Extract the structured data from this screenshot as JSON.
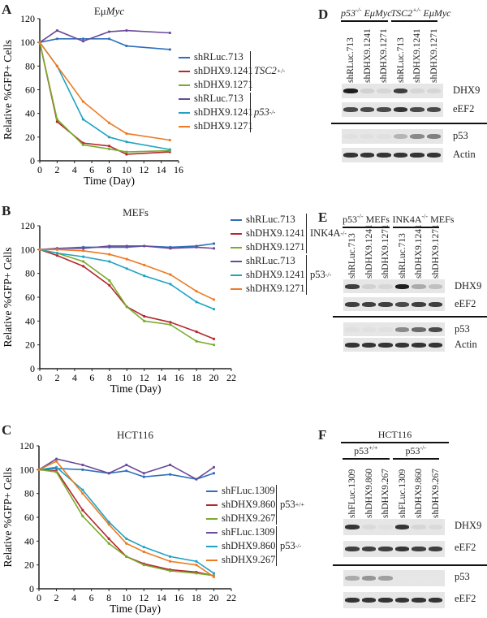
{
  "chart_data": [
    {
      "panel": "A",
      "type": "line",
      "title_parts": [
        "Eμ",
        "Myc"
      ],
      "xlabel": "Time (Day)",
      "ylabel": "Relative %GFP+ Cells",
      "xlim": [
        0,
        16
      ],
      "ylim": [
        0,
        120
      ],
      "xticks": [
        0,
        2,
        4,
        6,
        8,
        10,
        12,
        14,
        16
      ],
      "yticks": [
        0,
        20,
        40,
        60,
        80,
        100,
        120
      ],
      "grid": false,
      "legend": "right",
      "x": [
        0,
        2,
        5,
        8,
        10,
        15
      ],
      "groups": [
        {
          "name": "TSC2",
          "sup": "+/-",
          "italic": true
        },
        {
          "name": "p53",
          "sup": "-/-",
          "italic": true
        }
      ],
      "series": [
        {
          "name": "shRLuc.713",
          "group": 0,
          "color": "#2e6fba",
          "values": [
            100,
            103,
            103,
            103,
            97,
            94
          ]
        },
        {
          "name": "shDHX9.1241",
          "group": 0,
          "color": "#b5282e",
          "values": [
            100,
            33,
            15,
            12.5,
            5.5,
            7.5
          ]
        },
        {
          "name": "shDHX9.1271",
          "group": 0,
          "color": "#7aab2e",
          "values": [
            100,
            35,
            13.5,
            10,
            7.5,
            8.5
          ]
        },
        {
          "name": "shRLuc.713",
          "group": 1,
          "color": "#6b4a9a",
          "values": [
            100,
            110,
            101,
            109,
            110,
            108
          ]
        },
        {
          "name": "shDHX9.1241",
          "group": 1,
          "color": "#20a3c2",
          "values": [
            100,
            80,
            35,
            20,
            16,
            9.5
          ]
        },
        {
          "name": "shDHX9.1271",
          "group": 1,
          "color": "#ee7a22",
          "values": [
            100,
            80,
            50,
            32,
            23,
            17.5
          ]
        }
      ]
    },
    {
      "panel": "B",
      "type": "line",
      "title_parts": [
        "MEFs",
        ""
      ],
      "xlabel": "Time (Day)",
      "ylabel": "Relative %GFP+ Cells",
      "xlim": [
        0,
        22
      ],
      "ylim": [
        0,
        120
      ],
      "xticks": [
        0,
        2,
        4,
        6,
        8,
        10,
        12,
        14,
        16,
        18,
        20,
        22
      ],
      "yticks": [
        0,
        20,
        40,
        60,
        80,
        100,
        120
      ],
      "grid": false,
      "legend": "right",
      "x": [
        0,
        2,
        5,
        8,
        10,
        12,
        15,
        18,
        20
      ],
      "groups": [
        {
          "name": "INK4A",
          "sup": "-/-",
          "italic": false
        },
        {
          "name": "p53",
          "sup": "-/-",
          "italic": false
        }
      ],
      "series": [
        {
          "name": "shRLuc.713",
          "group": 0,
          "color": "#2e6fba",
          "values": [
            100,
            101,
            102,
            102,
            102,
            103,
            102,
            103,
            105
          ]
        },
        {
          "name": "shDHX9.1241",
          "group": 0,
          "color": "#b5282e",
          "values": [
            100,
            95,
            86,
            70,
            52,
            44,
            39,
            31,
            25
          ]
        },
        {
          "name": "shDHX9.1271",
          "group": 0,
          "color": "#7aab2e",
          "values": [
            100,
            97,
            90,
            74,
            52,
            40,
            37,
            23,
            20
          ]
        },
        {
          "name": "shRLuc.713",
          "group": 1,
          "color": "#6b4a9a",
          "values": [
            100,
            101,
            101,
            103,
            103,
            103,
            101,
            102,
            101
          ]
        },
        {
          "name": "shDHX9.1241",
          "group": 1,
          "color": "#20a3c2",
          "values": [
            100,
            97,
            94,
            90,
            84,
            78,
            71,
            56,
            50
          ]
        },
        {
          "name": "shDHX9.1271",
          "group": 1,
          "color": "#ee7a22",
          "values": [
            100,
            100,
            99,
            96,
            92,
            87,
            79,
            65,
            58
          ]
        }
      ]
    },
    {
      "panel": "C",
      "type": "line",
      "title_parts": [
        "HCT116",
        ""
      ],
      "xlabel": "Time (Day)",
      "ylabel": "Relative %GFP+ Cells",
      "xlim": [
        0,
        22
      ],
      "ylim": [
        0,
        120
      ],
      "xticks": [
        0,
        2,
        4,
        6,
        8,
        10,
        12,
        14,
        16,
        18,
        20,
        22
      ],
      "yticks": [
        0,
        20,
        40,
        60,
        80,
        100,
        120
      ],
      "grid": false,
      "legend": "right",
      "x": [
        0,
        2,
        5,
        8,
        10,
        12,
        15,
        18,
        20
      ],
      "groups": [
        {
          "name": "p53",
          "sup": "+/+",
          "italic": false
        },
        {
          "name": "p53",
          "sup": "-/-",
          "italic": false
        }
      ],
      "series": [
        {
          "name": "shFLuc.1309",
          "group": 0,
          "color": "#2e6fba",
          "values": [
            100,
            101,
            100,
            97,
            99,
            94,
            96,
            92,
            97
          ]
        },
        {
          "name": "shDHX9.860",
          "group": 0,
          "color": "#b5282e",
          "values": [
            100,
            99,
            66,
            42,
            27,
            21,
            16,
            14,
            11
          ]
        },
        {
          "name": "shDHX9.267",
          "group": 0,
          "color": "#7aab2e",
          "values": [
            100,
            98,
            61,
            38,
            27,
            20,
            15,
            13,
            11
          ]
        },
        {
          "name": "shFLuc.1309",
          "group": 1,
          "color": "#6b4a9a",
          "values": [
            100,
            109,
            104,
            97,
            104,
            97,
            104,
            92,
            102
          ]
        },
        {
          "name": "shDHX9.860",
          "group": 1,
          "color": "#20a3c2",
          "values": [
            100,
            102,
            83,
            56,
            42,
            35,
            27,
            23,
            13
          ]
        },
        {
          "name": "shDHX9.267",
          "group": 1,
          "color": "#ee7a22",
          "values": [
            100,
            107,
            80,
            54,
            38,
            31,
            23,
            20,
            10
          ]
        }
      ]
    }
  ],
  "blots": [
    {
      "panel": "D",
      "super_header": "",
      "headers": [
        {
          "name": "p53",
          "sup": "-/-",
          "rest": " EμMyc"
        },
        {
          "name": "TSC2",
          "sup": "+/-",
          "rest": " EμMyc"
        }
      ],
      "lanes": [
        "shRLuc.713",
        "shDHX9.1241",
        "shDHX9.1271",
        "shRLuc.713",
        "shDHX9.1241",
        "shDHX9.1271"
      ],
      "rows": [
        {
          "label": "DHX9",
          "intensity": [
            0.95,
            0.12,
            0.1,
            0.8,
            0.1,
            0.1
          ]
        },
        {
          "label": "eEF2",
          "intensity": [
            0.75,
            0.75,
            0.75,
            0.85,
            0.75,
            0.75
          ]
        },
        {
          "label": "p53",
          "intensity": [
            0.05,
            0.05,
            0.05,
            0.25,
            0.45,
            0.5
          ]
        },
        {
          "label": "Actin",
          "intensity": [
            0.85,
            0.85,
            0.85,
            0.85,
            0.85,
            0.85
          ]
        }
      ]
    },
    {
      "panel": "E",
      "super_header": "",
      "headers": [
        {
          "name": "p53",
          "sup": "-/-",
          "rest": " MEFs"
        },
        {
          "name": "INK4A",
          "sup": "-/-",
          "rest": " MEFs"
        }
      ],
      "lanes": [
        "shRLuc.713",
        "shDHX9.1241",
        "shDHX9.1271",
        "shRLuc.713",
        "shDHX9.1241",
        "shDHX9.1271"
      ],
      "rows": [
        {
          "label": "DHX9",
          "intensity": [
            0.8,
            0.12,
            0.1,
            0.95,
            0.3,
            0.2
          ]
        },
        {
          "label": "eEF2",
          "intensity": [
            0.8,
            0.8,
            0.8,
            0.75,
            0.8,
            0.8
          ]
        },
        {
          "label": "p53",
          "intensity": [
            0.05,
            0.05,
            0.05,
            0.45,
            0.6,
            0.75
          ]
        },
        {
          "label": "Actin",
          "intensity": [
            0.85,
            0.85,
            0.85,
            0.85,
            0.85,
            0.85
          ]
        }
      ]
    },
    {
      "panel": "F",
      "super_header": "HCT116",
      "headers": [
        {
          "name": "p53",
          "sup": "+/+",
          "rest": ""
        },
        {
          "name": "p53",
          "sup": "-/-",
          "rest": ""
        }
      ],
      "lanes": [
        "shFLuc.1309",
        "shDHX9.860",
        "shDHX9.267",
        "shFLuc.1309",
        "shDHX9.860",
        "shDHX9.267"
      ],
      "rows": [
        {
          "label": "DHX9",
          "intensity": [
            0.85,
            0.08,
            0.05,
            0.85,
            0.1,
            0.08
          ]
        },
        {
          "label": "eEF2",
          "intensity": [
            0.8,
            0.8,
            0.8,
            0.85,
            0.8,
            0.8
          ]
        },
        {
          "label": "p53",
          "intensity": [
            0.3,
            0.4,
            0.35,
            0.02,
            0.02,
            0.02
          ]
        },
        {
          "label": "eEF2",
          "intensity": [
            0.85,
            0.85,
            0.85,
            0.85,
            0.85,
            0.85
          ]
        }
      ]
    }
  ]
}
